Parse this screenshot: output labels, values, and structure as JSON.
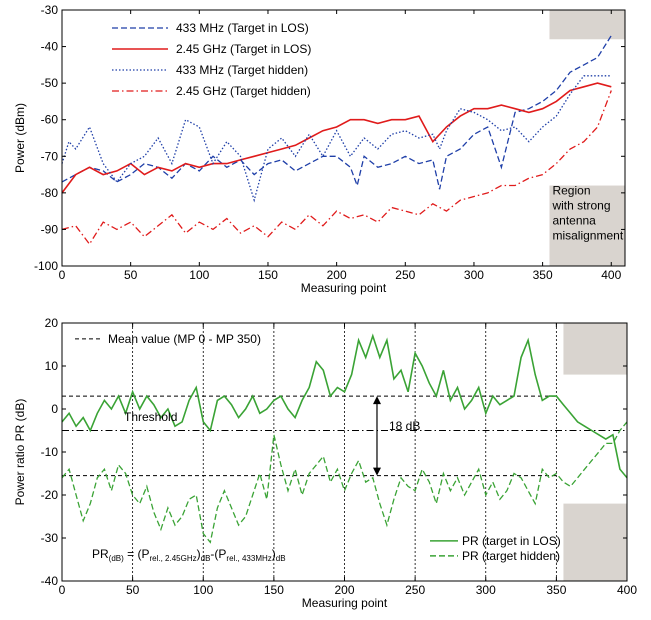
{
  "chart_data": [
    {
      "type": "line",
      "xlabel": "Measuring point",
      "ylabel": "Power (dBm)",
      "xlim": [
        0,
        410
      ],
      "ylim": [
        -100,
        -30
      ],
      "xticks": [
        0,
        50,
        100,
        150,
        200,
        250,
        300,
        350,
        400
      ],
      "yticks": [
        -100,
        -90,
        -80,
        -70,
        -60,
        -50,
        -40,
        -30
      ],
      "legend_position": "top-left",
      "shaded_region": {
        "x_start": 355,
        "label_lines": [
          "Region",
          "with strong",
          "antenna",
          "misalignment"
        ]
      },
      "series": [
        {
          "name": "433 MHz (Target in LOS)",
          "color": "#1f3fa8",
          "dash": "dashed",
          "x": [
            0,
            10,
            20,
            30,
            40,
            50,
            60,
            70,
            80,
            90,
            100,
            110,
            120,
            130,
            140,
            150,
            160,
            170,
            180,
            190,
            200,
            210,
            215,
            220,
            230,
            240,
            250,
            260,
            270,
            275,
            280,
            290,
            300,
            310,
            320,
            330,
            340,
            350,
            360,
            370,
            380,
            390,
            400
          ],
          "y": [
            -77,
            -75,
            -73,
            -74,
            -77,
            -75,
            -72,
            -73,
            -76,
            -72,
            -74,
            -70,
            -73,
            -71,
            -75,
            -72,
            -71,
            -74,
            -72,
            -70,
            -70,
            -73,
            -78,
            -70,
            -73,
            -72,
            -70,
            -72,
            -71,
            -79,
            -70,
            -68,
            -64,
            -62,
            -73,
            -58,
            -57,
            -55,
            -52,
            -47,
            -45,
            -43,
            -37
          ]
        },
        {
          "name": "2.45 GHz (Target in LOS)",
          "color": "#e01b1b",
          "dash": "solid",
          "x": [
            0,
            10,
            20,
            30,
            40,
            50,
            60,
            70,
            80,
            90,
            100,
            110,
            120,
            130,
            140,
            150,
            160,
            170,
            180,
            190,
            200,
            210,
            220,
            230,
            240,
            250,
            260,
            270,
            280,
            290,
            300,
            310,
            320,
            330,
            340,
            350,
            360,
            370,
            380,
            390,
            400
          ],
          "y": [
            -80,
            -75,
            -73,
            -75,
            -74,
            -72,
            -75,
            -73,
            -74,
            -72,
            -73,
            -72,
            -72,
            -71,
            -70,
            -69,
            -68,
            -67,
            -65,
            -63,
            -62,
            -60,
            -60,
            -61,
            -60,
            -60,
            -59,
            -66,
            -62,
            -59,
            -57,
            -57,
            -56,
            -57,
            -58,
            -57,
            -55,
            -52,
            -51,
            -50,
            -51
          ]
        },
        {
          "name": "433 MHz (Target hidden)",
          "color": "#1f3fa8",
          "dash": "dotted",
          "x": [
            0,
            5,
            10,
            20,
            30,
            40,
            50,
            60,
            70,
            80,
            90,
            100,
            110,
            120,
            130,
            140,
            150,
            160,
            170,
            180,
            190,
            200,
            210,
            220,
            230,
            240,
            250,
            260,
            270,
            275,
            280,
            290,
            300,
            310,
            320,
            330,
            340,
            350,
            360,
            370,
            380,
            390,
            400
          ],
          "y": [
            -72,
            -66,
            -68,
            -62,
            -72,
            -77,
            -72,
            -70,
            -65,
            -72,
            -60,
            -62,
            -72,
            -66,
            -70,
            -82,
            -68,
            -65,
            -70,
            -64,
            -70,
            -63,
            -70,
            -65,
            -68,
            -64,
            -63,
            -65,
            -64,
            -68,
            -63,
            -57,
            -58,
            -60,
            -63,
            -62,
            -66,
            -62,
            -59,
            -53,
            -48,
            -48,
            -48
          ]
        },
        {
          "name": "2.45 GHz (Target hidden)",
          "color": "#e01b1b",
          "dash": "dashdot",
          "x": [
            0,
            10,
            20,
            30,
            40,
            50,
            60,
            70,
            80,
            90,
            100,
            110,
            120,
            130,
            140,
            150,
            160,
            170,
            180,
            190,
            200,
            210,
            220,
            230,
            240,
            250,
            260,
            270,
            280,
            290,
            300,
            310,
            320,
            330,
            340,
            350,
            360,
            370,
            380,
            390,
            400
          ],
          "y": [
            -90,
            -89,
            -94,
            -88,
            -90,
            -88,
            -92,
            -89,
            -86,
            -91,
            -88,
            -90,
            -87,
            -91,
            -89,
            -92,
            -88,
            -90,
            -86,
            -89,
            -85,
            -87,
            -86,
            -88,
            -84,
            -85,
            -86,
            -83,
            -85,
            -82,
            -81,
            -80,
            -78,
            -78,
            -76,
            -75,
            -72,
            -68,
            -66,
            -62,
            -52
          ]
        }
      ]
    },
    {
      "type": "line",
      "xlabel": "Measuring point",
      "ylabel": "Power ratio PR (dB)",
      "xlim": [
        0,
        400
      ],
      "ylim": [
        -40,
        20
      ],
      "xticks": [
        0,
        50,
        100,
        150,
        200,
        250,
        300,
        350,
        400
      ],
      "yticks": [
        -40,
        -30,
        -20,
        -10,
        0,
        10,
        20
      ],
      "vertical_gridlines": [
        50,
        100,
        150,
        200,
        250,
        300,
        350
      ],
      "legend_position": "bottom-right",
      "mean_legend_label": "Mean value (MP 0 - MP 350)",
      "mean_lines": [
        3,
        -15.5
      ],
      "threshold": {
        "value": -5,
        "label": "Threshold"
      },
      "difference_annotation": {
        "x": 223,
        "from": 3,
        "to": -15.5,
        "label": "18 dB"
      },
      "formula": {
        "lhs": "PR",
        "lhs_sub": "(dB)",
        "eq": " = (P",
        "sub1": "rel., 2.45GHz",
        "mid": ")",
        "sub2": "dB",
        "minus": "-(P",
        "sub3": "rel., 433MHz",
        "close": ")",
        "sub4": "dB"
      },
      "shaded_regions": [
        {
          "x_start": 355,
          "y_from": 8,
          "y_to": 20
        },
        {
          "x_start": 355,
          "y_from": -40,
          "y_to": -22
        }
      ],
      "series": [
        {
          "name": "PR (target in LOS)",
          "color": "#3aa335",
          "dash": "solid",
          "x": [
            0,
            5,
            10,
            15,
            20,
            25,
            30,
            35,
            40,
            45,
            50,
            55,
            60,
            65,
            70,
            75,
            80,
            85,
            90,
            95,
            100,
            105,
            110,
            115,
            120,
            125,
            130,
            135,
            140,
            145,
            150,
            155,
            160,
            165,
            170,
            175,
            180,
            185,
            190,
            195,
            200,
            205,
            210,
            215,
            220,
            225,
            230,
            235,
            240,
            245,
            250,
            255,
            260,
            265,
            270,
            275,
            280,
            285,
            290,
            295,
            300,
            305,
            310,
            315,
            320,
            325,
            330,
            335,
            340,
            345,
            350,
            355,
            360,
            365,
            370,
            375,
            380,
            385,
            390,
            395,
            400
          ],
          "y": [
            -3,
            -1,
            -4,
            -2,
            -5,
            -1,
            2,
            0,
            3,
            -1,
            4,
            0,
            3,
            1,
            -2,
            0,
            -4,
            -3,
            2,
            5,
            -3,
            -5,
            2,
            3,
            1,
            -2,
            0,
            3,
            -1,
            0,
            2,
            3,
            0,
            -2,
            2,
            5,
            11,
            9,
            3,
            5,
            4,
            8,
            16,
            12,
            17,
            12,
            16,
            7,
            9,
            4,
            13,
            10,
            6,
            3,
            9,
            2,
            5,
            0,
            2,
            5,
            -1,
            3,
            1,
            2,
            3,
            12,
            16,
            8,
            2,
            3,
            3,
            1,
            -1,
            -3,
            -4,
            -5,
            -6,
            -7,
            -6,
            -14,
            -16
          ]
        },
        {
          "name": "PR (target hidden)",
          "color": "#3aa335",
          "dash": "dashed",
          "x": [
            0,
            5,
            10,
            15,
            20,
            25,
            30,
            35,
            40,
            45,
            50,
            55,
            60,
            65,
            70,
            75,
            80,
            85,
            90,
            95,
            100,
            105,
            110,
            115,
            120,
            125,
            130,
            135,
            140,
            145,
            150,
            155,
            160,
            165,
            170,
            175,
            180,
            185,
            190,
            195,
            200,
            205,
            210,
            215,
            220,
            225,
            230,
            235,
            240,
            245,
            250,
            255,
            260,
            265,
            270,
            275,
            280,
            285,
            290,
            295,
            300,
            305,
            310,
            315,
            320,
            325,
            330,
            335,
            340,
            345,
            350,
            355,
            360,
            365,
            370,
            375,
            380,
            385,
            390,
            395,
            400
          ],
          "y": [
            -16,
            -14,
            -20,
            -26,
            -22,
            -16,
            -14,
            -19,
            -13,
            -15,
            -20,
            -22,
            -18,
            -24,
            -28,
            -23,
            -27,
            -25,
            -21,
            -20,
            -29,
            -31,
            -23,
            -19,
            -23,
            -27,
            -25,
            -20,
            -15,
            -21,
            -6,
            -13,
            -19,
            -14,
            -20,
            -15,
            -13,
            -11,
            -17,
            -14,
            -19,
            -15,
            -12,
            -17,
            -16,
            -22,
            -27,
            -21,
            -16,
            -18,
            -19,
            -14,
            -17,
            -22,
            -15,
            -19,
            -16,
            -20,
            -17,
            -14,
            -20,
            -17,
            -21,
            -19,
            -15,
            -16,
            -19,
            -22,
            -14,
            -16,
            -15,
            -17,
            -18,
            -16,
            -14,
            -12,
            -10,
            -8,
            -8,
            -5,
            -3
          ]
        }
      ]
    }
  ]
}
